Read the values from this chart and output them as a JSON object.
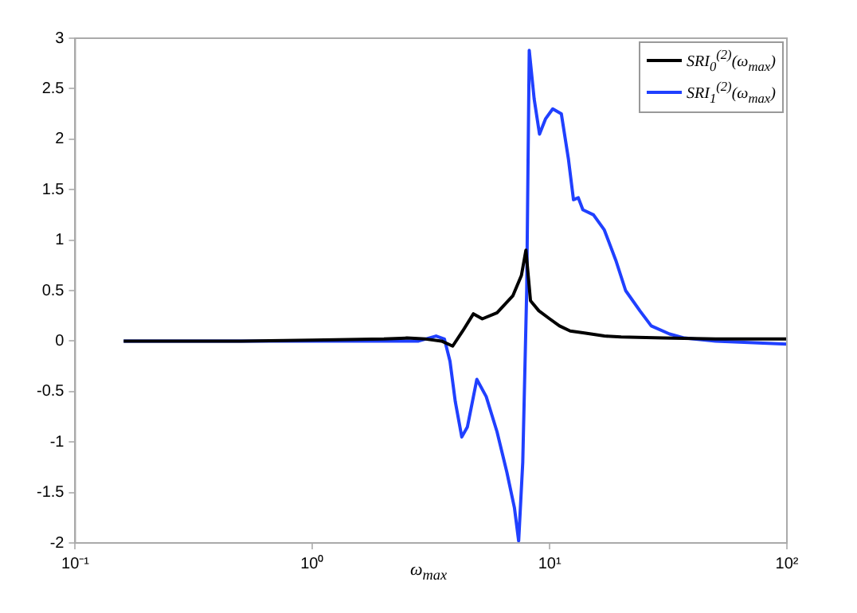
{
  "chart_data": {
    "type": "line",
    "xlabel": "ω$_{max}$",
    "log": "x",
    "grid": false,
    "legend": "top right",
    "marker": "none",
    "line_style": "solid",
    "xlim": [
      0.1,
      100
    ],
    "xticks": [
      {
        "value": 0.1,
        "label": "10⁻¹"
      },
      {
        "value": 1,
        "label": "10⁰"
      },
      {
        "value": 10,
        "label": "10¹"
      },
      {
        "value": 100,
        "label": "10²"
      }
    ],
    "ylim": [
      -2,
      3
    ],
    "yticks": [
      -2,
      -1.5,
      -1,
      -0.5,
      0,
      0.5,
      1,
      1.5,
      2,
      2.5,
      3
    ],
    "series": [
      {
        "name": "SRI$_{0}$$^{(2)}$(ω$_{max}$)",
        "color": "#000000",
        "x": [
          0.16,
          0.5,
          1,
          2,
          2.5,
          3,
          3.5,
          3.9,
          4.3,
          4.77,
          5.2,
          6,
          7,
          7.6,
          7.94,
          8.3,
          9,
          10,
          11,
          12.2,
          14,
          17,
          20,
          30,
          50,
          100
        ],
        "values": [
          0,
          0,
          0.01,
          0.02,
          0.03,
          0.02,
          0,
          -0.05,
          0.1,
          0.27,
          0.22,
          0.28,
          0.45,
          0.65,
          0.9,
          0.4,
          0.3,
          0.22,
          0.15,
          0.1,
          0.08,
          0.05,
          0.04,
          0.03,
          0.02,
          0.02
        ]
      },
      {
        "name": "SRI$_{1}$$^{(2)}$(ω$_{max}$)",
        "color": "#2040ff",
        "x": [
          0.16,
          0.5,
          1,
          2,
          2.8,
          3.32,
          3.6,
          3.8,
          4,
          4.26,
          4.5,
          4.93,
          5.4,
          6,
          6.6,
          7.1,
          7.4,
          7.7,
          8,
          8.2,
          8.6,
          9.06,
          9.6,
          10.3,
          11.2,
          12,
          12.6,
          13.2,
          13.8,
          15.3,
          17,
          19,
          20.9,
          24,
          26.8,
          32,
          37,
          50,
          100
        ],
        "values": [
          0,
          0,
          0,
          0,
          0,
          0.05,
          0.02,
          -0.2,
          -0.6,
          -0.95,
          -0.85,
          -0.38,
          -0.55,
          -0.9,
          -1.3,
          -1.65,
          -1.98,
          -1.2,
          0.5,
          2.88,
          2.4,
          2.05,
          2.2,
          2.3,
          2.25,
          1.8,
          1.4,
          1.42,
          1.3,
          1.25,
          1.1,
          0.8,
          0.5,
          0.3,
          0.15,
          0.07,
          0.03,
          0,
          -0.03
        ]
      }
    ]
  }
}
